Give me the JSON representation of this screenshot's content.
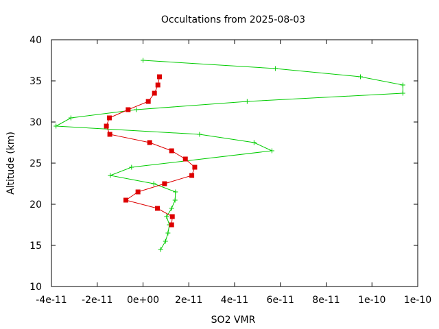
{
  "chart_data": {
    "type": "line",
    "title": "Occultations from 2025-08-03",
    "xlabel": "SO2 VMR",
    "ylabel": "Altitude (km)",
    "xlim": [
      -4e-11,
      1.2e-10
    ],
    "ylim": [
      10,
      40
    ],
    "x_ticks": [
      -4e-11,
      -2e-11,
      0,
      2e-11,
      4e-11,
      6e-11,
      8e-11,
      1e-10,
      1.2e-10
    ],
    "x_tick_labels": [
      "-4e-11",
      "-2e-11",
      "0e+00",
      "2e-11",
      "4e-11",
      "6e-11",
      "8e-11",
      "1e-10",
      "1e-10"
    ],
    "y_ticks": [
      10,
      15,
      20,
      25,
      30,
      35,
      40
    ],
    "y_tick_labels": [
      "10",
      "15",
      "20",
      "25",
      "30",
      "35",
      "40"
    ],
    "grid": false,
    "legend": "none",
    "series": [
      {
        "color": "#00cc00",
        "marker": "plus",
        "x": [
          7.7e-12,
          9.8e-12,
          1.09e-11,
          1.15e-11,
          1.03e-11,
          1.25e-11,
          1.4e-11,
          1.42e-11,
          4.7e-12,
          -1.43e-11,
          -5e-12,
          5.63e-11,
          4.85e-11,
          2.47e-11,
          -3.8e-11,
          -3.15e-11,
          -3e-12,
          4.55e-11,
          1.135e-10,
          1.135e-10,
          9.5e-11,
          5.78e-11,
          0
        ],
        "y": [
          14.5,
          15.5,
          16.5,
          17.5,
          18.5,
          19.5,
          20.5,
          21.5,
          22.5,
          23.5,
          24.5,
          26.5,
          27.5,
          28.5,
          29.5,
          30.5,
          31.5,
          32.5,
          33.5,
          34.5,
          35.5,
          36.5,
          37.5
        ]
      },
      {
        "color": "#dd0000",
        "marker": "square",
        "x": [
          1.25e-11,
          1.28e-11,
          6.3e-12,
          -7.5e-12,
          -2.2e-12,
          9.4e-12,
          2.13e-11,
          2.26e-11,
          1.85e-11,
          1.25e-11,
          2.9e-12,
          -1.45e-11,
          -1.6e-11,
          -1.47e-11,
          -6.5e-12,
          2.3e-12,
          5e-12,
          6.5e-12,
          7.2e-12
        ],
        "y": [
          17.5,
          18.5,
          19.5,
          20.5,
          21.5,
          22.5,
          23.5,
          24.5,
          25.5,
          26.5,
          27.5,
          28.5,
          29.5,
          30.5,
          31.5,
          32.5,
          33.5,
          34.5,
          35.5
        ]
      }
    ]
  }
}
